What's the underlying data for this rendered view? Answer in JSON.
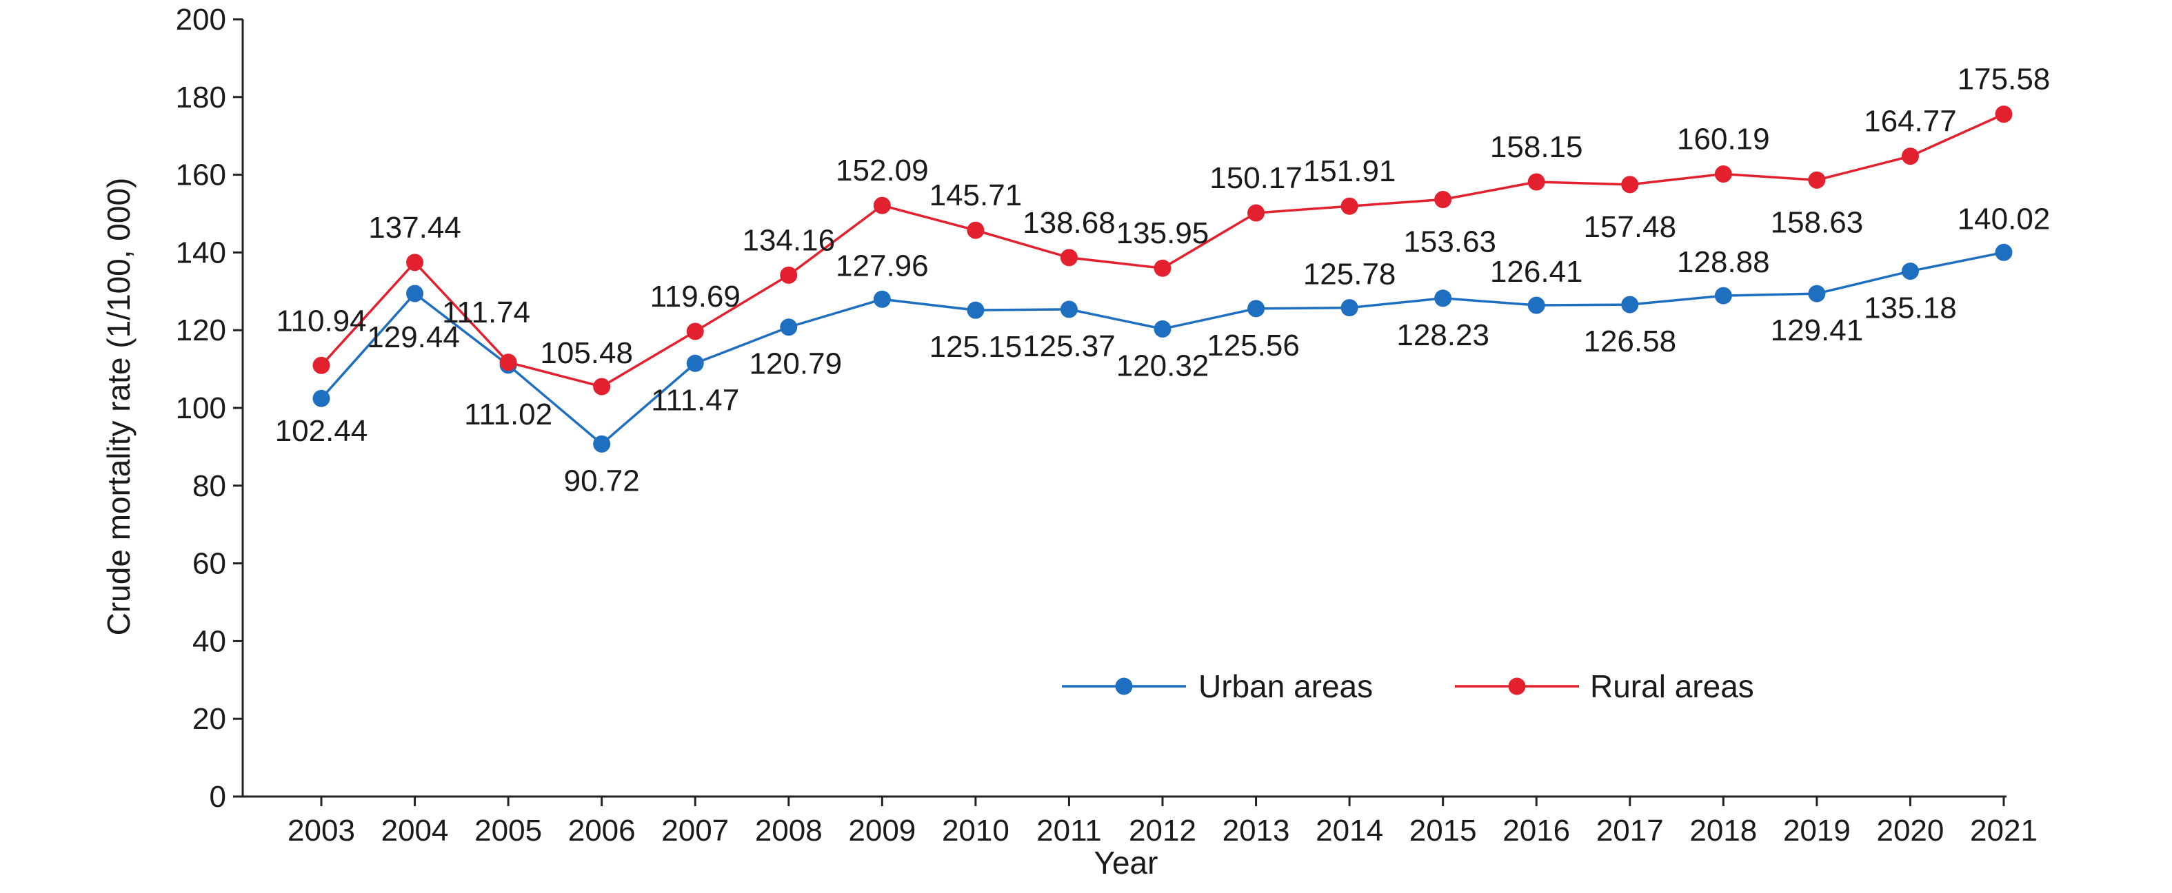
{
  "chart_data": {
    "type": "line",
    "title": "",
    "xlabel": "Year",
    "ylabel": "Crude mortality rate (1/100, 000)",
    "ylim": [
      0,
      200
    ],
    "yticks": [
      0,
      20,
      40,
      60,
      80,
      100,
      120,
      140,
      160,
      180,
      200
    ],
    "categories": [
      "2003",
      "2004",
      "2005",
      "2006",
      "2007",
      "2008",
      "2009",
      "2010",
      "2011",
      "2012",
      "2013",
      "2014",
      "2015",
      "2016",
      "2017",
      "2018",
      "2019",
      "2020",
      "2021"
    ],
    "legend_position": "bottom-center inside plot",
    "grid": false,
    "series": [
      {
        "name": "Urban areas",
        "color": "#1f6fc0",
        "values": [
          102.44,
          129.44,
          111.02,
          90.72,
          111.47,
          120.79,
          127.96,
          125.15,
          125.37,
          120.32,
          125.56,
          125.78,
          128.23,
          126.41,
          126.58,
          128.88,
          129.41,
          135.18,
          140.02
        ],
        "labels": [
          "102.44",
          "129.44",
          "111.02",
          "90.72",
          "111.47",
          "120.79",
          "127.96",
          "125.15",
          "125.37",
          "120.32",
          "125.56",
          "125.78",
          "128.23",
          "126.41",
          "126.58",
          "128.88",
          "129.41",
          "135.18",
          "140.02"
        ]
      },
      {
        "name": "Rural areas",
        "color": "#e3202e",
        "values": [
          110.94,
          137.44,
          111.74,
          105.48,
          119.69,
          134.16,
          152.09,
          145.71,
          138.68,
          135.95,
          150.17,
          151.91,
          153.63,
          158.15,
          157.48,
          160.19,
          158.63,
          164.77,
          175.58
        ],
        "labels": [
          "110.94",
          "137.44",
          "111.74",
          "105.48",
          "119.69",
          "134.16",
          "152.09",
          "145.71",
          "138.68",
          "135.95",
          "150.17",
          "151.91",
          "153.63",
          "158.15",
          "157.48",
          "160.19",
          "158.63",
          "164.77",
          "175.58"
        ]
      }
    ]
  }
}
